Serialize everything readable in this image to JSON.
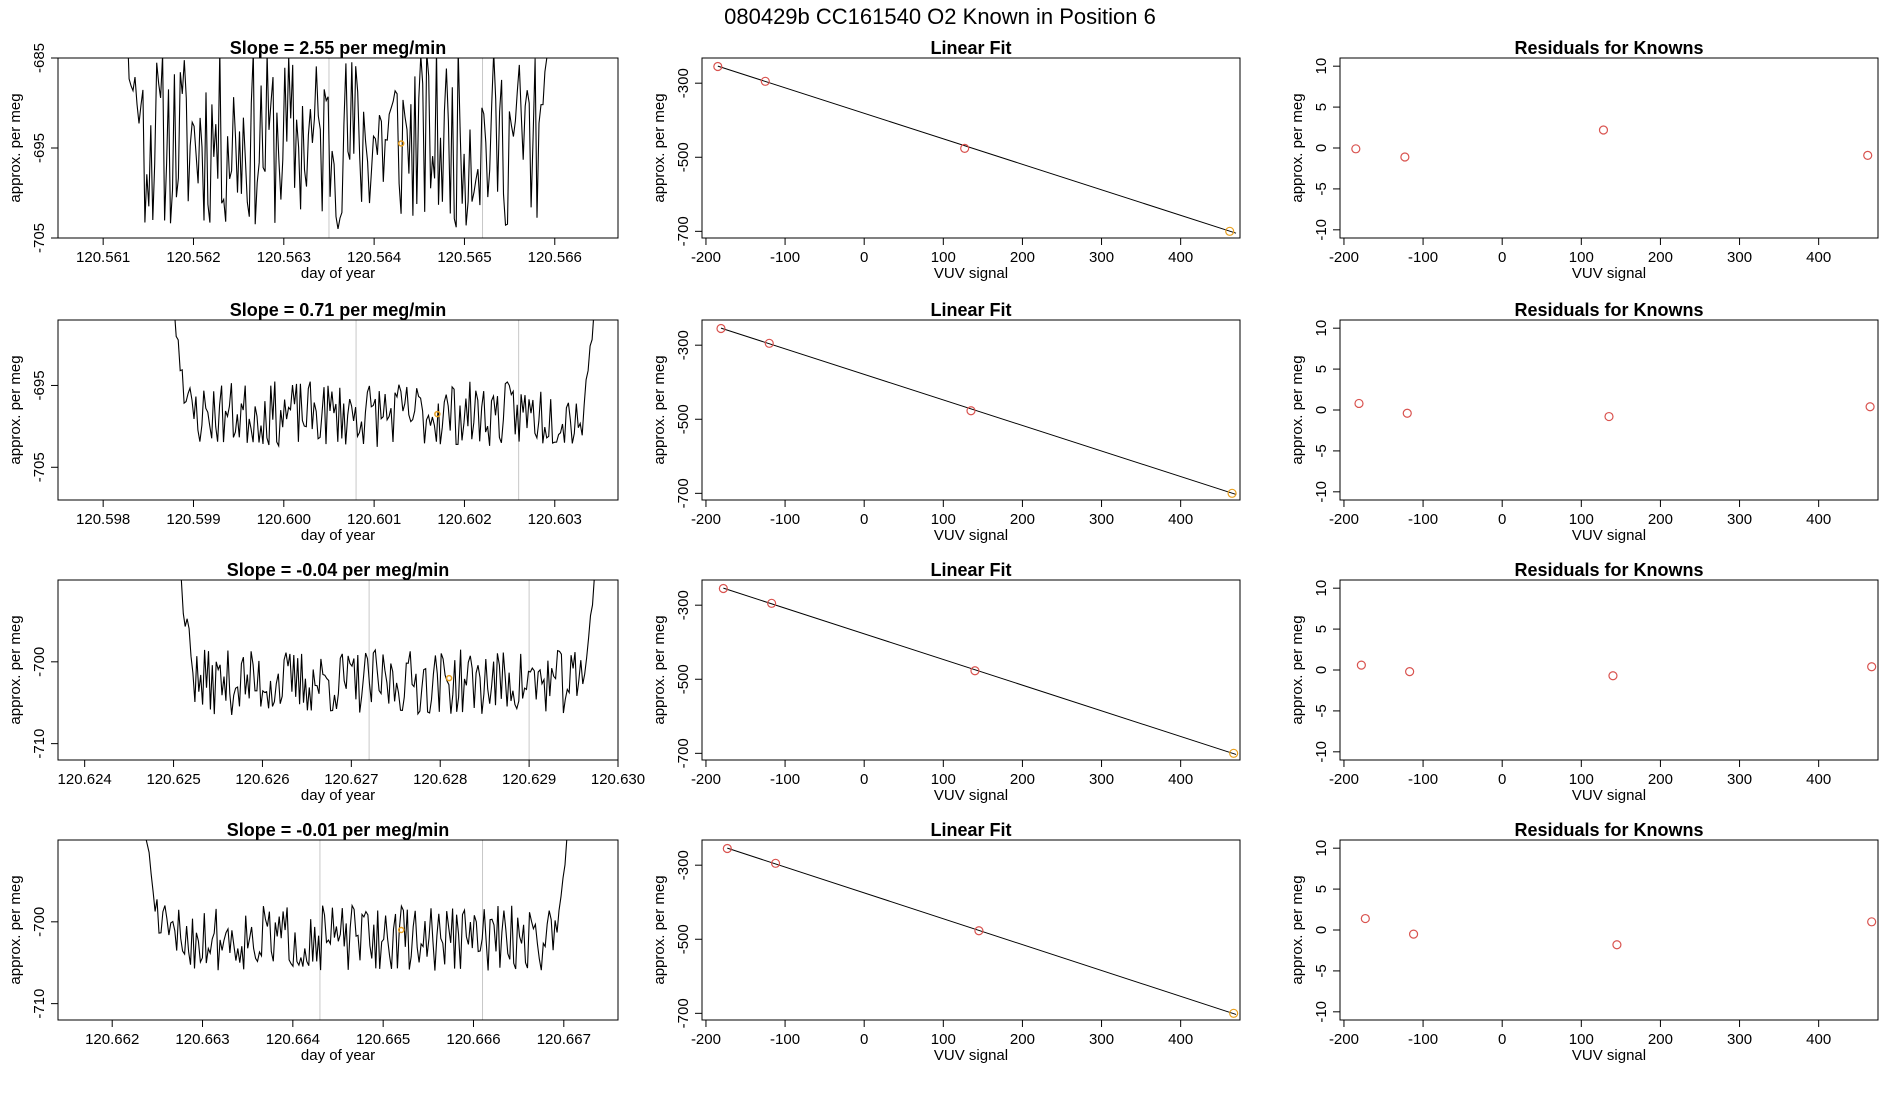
{
  "figure_title": "080429b      CC161540    O2 Known in Position  6",
  "colors": {
    "trace": "#000000",
    "points": "#d9534f",
    "highlight": "#e8a020",
    "vline": "#c8c8c8",
    "fit": "#000000"
  },
  "chart_data": [
    {
      "row": 1,
      "type": "line",
      "title": "Slope =  2.55  per meg/min",
      "xlabel": "day of year",
      "ylabel": "approx. per meg",
      "xlim": [
        120.5605,
        120.5667
      ],
      "ylim": [
        -705,
        -685
      ],
      "xticks": [
        "120.561",
        "120.562",
        "120.563",
        "120.564",
        "120.565",
        "120.566"
      ],
      "xtick_values": [
        120.561,
        120.562,
        120.563,
        120.564,
        120.565,
        120.566
      ],
      "yticks": [
        "-705",
        "-695",
        "-685"
      ],
      "ytick_values": [
        -705,
        -695,
        -685
      ],
      "series_range": [
        120.5612,
        120.566
      ],
      "noise_center": -694,
      "noise_amp": 10,
      "seed": 11,
      "vlines": [
        120.5635,
        120.5652
      ],
      "highlight": {
        "x": 120.5643,
        "y": -694.5
      }
    },
    {
      "row": 1,
      "type": "scatter",
      "title": "Linear Fit",
      "xlabel": "VUV signal",
      "ylabel": "approx. per meg",
      "xlim": [
        -205,
        475
      ],
      "ylim": [
        -718,
        -232
      ],
      "xticks": [
        "-200",
        "-100",
        "0",
        "100",
        "200",
        "300",
        "400"
      ],
      "xtick_values": [
        -200,
        -100,
        0,
        100,
        200,
        300,
        400
      ],
      "yticks": [
        "-700",
        "-500",
        "-300"
      ],
      "ytick_values": [
        -700,
        -500,
        -300
      ],
      "points": [
        [
          -185,
          -255
        ],
        [
          -125,
          -295
        ],
        [
          127,
          -476
        ],
        [
          462,
          -700
        ]
      ],
      "fit": [
        [
          -185,
          -254
        ],
        [
          470,
          -705
        ]
      ]
    },
    {
      "row": 1,
      "type": "scatter",
      "title": "Residuals for Knowns",
      "xlabel": "VUV signal",
      "ylabel": "approx. per meg",
      "xlim": [
        -205,
        475
      ],
      "ylim": [
        -11,
        11
      ],
      "xticks": [
        "-200",
        "-100",
        "0",
        "100",
        "200",
        "300",
        "400"
      ],
      "xtick_values": [
        -200,
        -100,
        0,
        100,
        200,
        300,
        400
      ],
      "yticks": [
        "-10",
        "-5",
        "0",
        "5",
        "10"
      ],
      "ytick_values": [
        -10,
        -5,
        0,
        5,
        10
      ],
      "points": [
        [
          -185,
          -0.1
        ],
        [
          -123,
          -1.1
        ],
        [
          128,
          2.2
        ],
        [
          462,
          -0.9
        ]
      ]
    },
    {
      "row": 2,
      "type": "line",
      "title": "Slope =  0.71  per meg/min",
      "xlabel": "day of year",
      "ylabel": "approx. per meg",
      "xlim": [
        120.5975,
        120.6037
      ],
      "ylim": [
        -709,
        -687
      ],
      "xticks": [
        "120.598",
        "120.599",
        "120.600",
        "120.601",
        "120.602",
        "120.603"
      ],
      "xtick_values": [
        120.598,
        120.599,
        120.6,
        120.601,
        120.602,
        120.603
      ],
      "yticks": [
        "-705",
        "-695"
      ],
      "ytick_values": [
        -705,
        -695
      ],
      "series_range": [
        120.5987,
        120.6035
      ],
      "noise_center": -698.5,
      "noise_amp": 4,
      "seed": 23,
      "vlines": [
        120.6008,
        120.6026
      ],
      "highlight": {
        "x": 120.6017,
        "y": -698.5
      }
    },
    {
      "row": 2,
      "type": "scatter",
      "title": "Linear Fit",
      "xlabel": "VUV signal",
      "ylabel": "approx. per meg",
      "xlim": [
        -205,
        475
      ],
      "ylim": [
        -718,
        -232
      ],
      "xticks": [
        "-200",
        "-100",
        "0",
        "100",
        "200",
        "300",
        "400"
      ],
      "xtick_values": [
        -200,
        -100,
        0,
        100,
        200,
        300,
        400
      ],
      "yticks": [
        "-700",
        "-500",
        "-300"
      ],
      "ytick_values": [
        -700,
        -500,
        -300
      ],
      "points": [
        [
          -181,
          -255
        ],
        [
          -120,
          -295
        ],
        [
          135,
          -477
        ],
        [
          465,
          -700
        ]
      ],
      "fit": [
        [
          -181,
          -254
        ],
        [
          470,
          -703
        ]
      ]
    },
    {
      "row": 2,
      "type": "scatter",
      "title": "Residuals for Knowns",
      "xlabel": "VUV signal",
      "ylabel": "approx. per meg",
      "xlim": [
        -205,
        475
      ],
      "ylim": [
        -11,
        11
      ],
      "xticks": [
        "-200",
        "-100",
        "0",
        "100",
        "200",
        "300",
        "400"
      ],
      "xtick_values": [
        -200,
        -100,
        0,
        100,
        200,
        300,
        400
      ],
      "yticks": [
        "-10",
        "-5",
        "0",
        "5",
        "10"
      ],
      "ytick_values": [
        -10,
        -5,
        0,
        5,
        10
      ],
      "points": [
        [
          -181,
          0.8
        ],
        [
          -120,
          -0.4
        ],
        [
          135,
          -0.8
        ],
        [
          465,
          0.4
        ]
      ]
    },
    {
      "row": 3,
      "type": "line",
      "title": "Slope =  -0.04  per meg/min",
      "xlabel": "day of year",
      "ylabel": "approx. per meg",
      "xlim": [
        120.6237,
        120.63
      ],
      "ylim": [
        -712,
        -690
      ],
      "xticks": [
        "120.624",
        "120.625",
        "120.626",
        "120.627",
        "120.628",
        "120.629",
        "120.630"
      ],
      "xtick_values": [
        120.624,
        120.625,
        120.626,
        120.627,
        120.628,
        120.629,
        120.63
      ],
      "yticks": [
        "-710",
        "-700"
      ],
      "ytick_values": [
        -710,
        -700
      ],
      "series_range": [
        120.625,
        120.6298
      ],
      "noise_center": -702.5,
      "noise_amp": 4,
      "seed": 37,
      "vlines": [
        120.6272,
        120.629
      ],
      "highlight": {
        "x": 120.6281,
        "y": -702
      }
    },
    {
      "row": 3,
      "type": "scatter",
      "title": "Linear Fit",
      "xlabel": "VUV signal",
      "ylabel": "approx. per meg",
      "xlim": [
        -205,
        475
      ],
      "ylim": [
        -718,
        -232
      ],
      "xticks": [
        "-200",
        "-100",
        "0",
        "100",
        "200",
        "300",
        "400"
      ],
      "xtick_values": [
        -200,
        -100,
        0,
        100,
        200,
        300,
        400
      ],
      "yticks": [
        "-700",
        "-500",
        "-300"
      ],
      "ytick_values": [
        -700,
        -500,
        -300
      ],
      "points": [
        [
          -178,
          -255
        ],
        [
          -117,
          -295
        ],
        [
          140,
          -477
        ],
        [
          467,
          -700
        ]
      ],
      "fit": [
        [
          -178,
          -254
        ],
        [
          470,
          -703
        ]
      ]
    },
    {
      "row": 3,
      "type": "scatter",
      "title": "Residuals for Knowns",
      "xlabel": "VUV signal",
      "ylabel": "approx. per meg",
      "xlim": [
        -205,
        475
      ],
      "ylim": [
        -11,
        11
      ],
      "xticks": [
        "-200",
        "-100",
        "0",
        "100",
        "200",
        "300",
        "400"
      ],
      "xtick_values": [
        -200,
        -100,
        0,
        100,
        200,
        300,
        400
      ],
      "yticks": [
        "-10",
        "-5",
        "0",
        "5",
        "10"
      ],
      "ytick_values": [
        -10,
        -5,
        0,
        5,
        10
      ],
      "points": [
        [
          -178,
          0.6
        ],
        [
          -117,
          -0.2
        ],
        [
          140,
          -0.7
        ],
        [
          467,
          0.4
        ]
      ]
    },
    {
      "row": 4,
      "type": "line",
      "title": "Slope =  -0.01  per meg/min",
      "xlabel": "day of year",
      "ylabel": "approx. per meg",
      "xlim": [
        120.6614,
        120.6676
      ],
      "ylim": [
        -712,
        -690
      ],
      "xticks": [
        "120.662",
        "120.663",
        "120.664",
        "120.665",
        "120.666",
        "120.667"
      ],
      "xtick_values": [
        120.662,
        120.663,
        120.664,
        120.665,
        120.666,
        120.667
      ],
      "yticks": [
        "-710",
        "-700"
      ],
      "ytick_values": [
        -710,
        -700
      ],
      "series_range": [
        120.6623,
        120.6671
      ],
      "noise_center": -702,
      "noise_amp": 4,
      "seed": 51,
      "vlines": [
        120.6643,
        120.6661
      ],
      "highlight": {
        "x": 120.6652,
        "y": -701
      }
    },
    {
      "row": 4,
      "type": "scatter",
      "title": "Linear Fit",
      "xlabel": "VUV signal",
      "ylabel": "approx. per meg",
      "xlim": [
        -205,
        475
      ],
      "ylim": [
        -718,
        -232
      ],
      "xticks": [
        "-200",
        "-100",
        "0",
        "100",
        "200",
        "300",
        "400"
      ],
      "xtick_values": [
        -200,
        -100,
        0,
        100,
        200,
        300,
        400
      ],
      "yticks": [
        "-700",
        "-500",
        "-300"
      ],
      "ytick_values": [
        -700,
        -500,
        -300
      ],
      "points": [
        [
          -173,
          -255
        ],
        [
          -112,
          -295
        ],
        [
          145,
          -477
        ],
        [
          467,
          -700
        ]
      ],
      "fit": [
        [
          -173,
          -254
        ],
        [
          470,
          -703
        ]
      ]
    },
    {
      "row": 4,
      "type": "scatter",
      "title": "Residuals for Knowns",
      "xlabel": "VUV signal",
      "ylabel": "approx. per meg",
      "xlim": [
        -205,
        475
      ],
      "ylim": [
        -11,
        11
      ],
      "xticks": [
        "-200",
        "-100",
        "0",
        "100",
        "200",
        "300",
        "400"
      ],
      "xtick_values": [
        -200,
        -100,
        0,
        100,
        200,
        300,
        400
      ],
      "yticks": [
        "-10",
        "-5",
        "0",
        "5",
        "10"
      ],
      "ytick_values": [
        -10,
        -5,
        0,
        5,
        10
      ],
      "points": [
        [
          -173,
          1.4
        ],
        [
          -112,
          -0.5
        ],
        [
          145,
          -1.8
        ],
        [
          467,
          1.0
        ]
      ]
    }
  ]
}
